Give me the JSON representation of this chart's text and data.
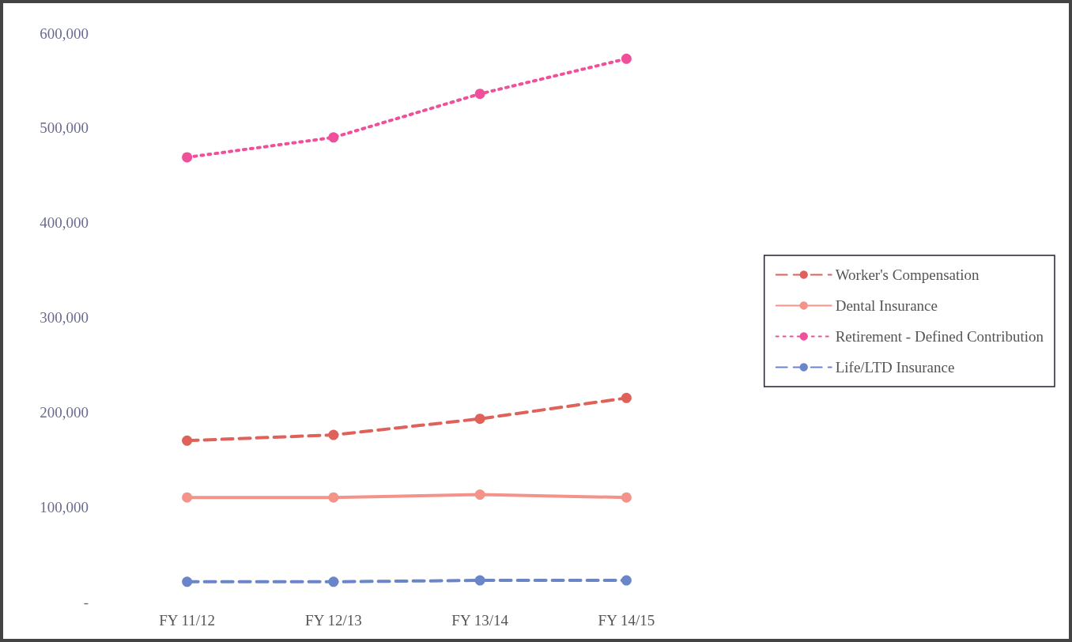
{
  "chart_data": {
    "type": "line",
    "categories": [
      "FY 11/12",
      "FY 12/13",
      "FY 13/14",
      "FY 14/15"
    ],
    "series": [
      {
        "name": "Worker's Compensation",
        "color": "#e0605a",
        "line_style": "dashed",
        "values": [
          170000,
          176000,
          193000,
          215000
        ]
      },
      {
        "name": "Dental Insurance",
        "color": "#f4938a",
        "line_style": "solid",
        "values": [
          110000,
          110000,
          113000,
          110000
        ]
      },
      {
        "name": "Retirement - Defined Contribution",
        "color": "#f0509a",
        "line_style": "dotted",
        "values": [
          469000,
          490000,
          536000,
          573000
        ]
      },
      {
        "name": "Life/LTD Insurance",
        "color": "#6a86c8",
        "line_style": "dashed",
        "values": [
          21000,
          21000,
          22500,
          22500
        ]
      }
    ],
    "ylim": [
      0,
      600000
    ],
    "yticks": [
      {
        "value": 0,
        "label": "-"
      },
      {
        "value": 100000,
        "label": "100,000"
      },
      {
        "value": 200000,
        "label": "200,000"
      },
      {
        "value": 300000,
        "label": "300,000"
      },
      {
        "value": 400000,
        "label": "400,000"
      },
      {
        "value": 500000,
        "label": "500,000"
      },
      {
        "value": 600000,
        "label": "600,000"
      }
    ],
    "grid": false,
    "legend": "right",
    "marker": "circle"
  }
}
